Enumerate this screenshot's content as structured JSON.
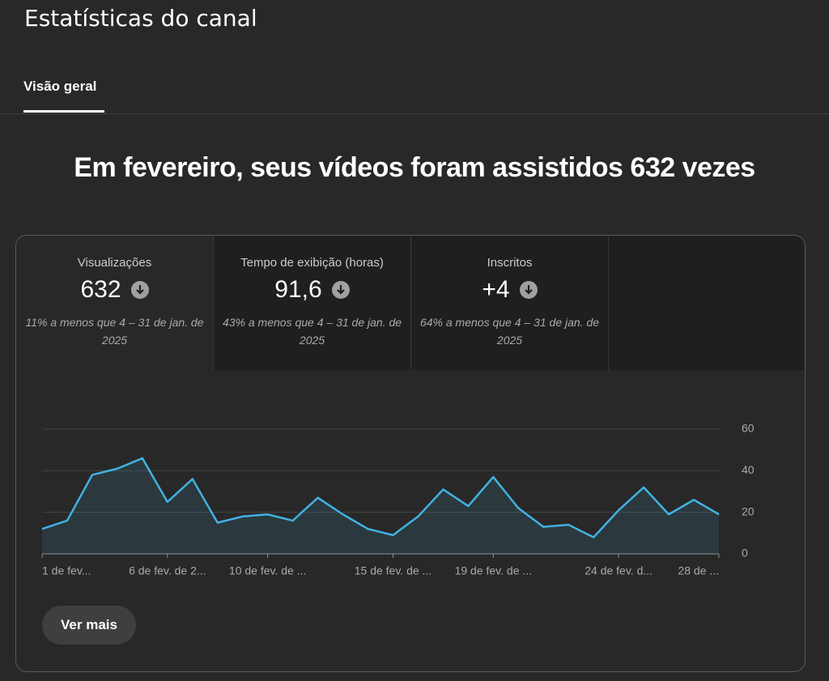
{
  "header": {
    "title": "Estatísticas do canal",
    "tab": "Visão geral"
  },
  "headline": "Em fevereiro, seus vídeos foram assistidos 632 vezes",
  "metrics": [
    {
      "label": "Visualizações",
      "value": "632",
      "note": "11% a menos que 4 – 31 de jan. de 2025"
    },
    {
      "label": "Tempo de exibição (horas)",
      "value": "91,6",
      "note": "43% a menos que 4 – 31 de jan. de 2025"
    },
    {
      "label": "Inscritos",
      "value": "+4",
      "note": "64% a menos que 4 – 31 de jan. de 2025"
    }
  ],
  "chart_data": {
    "type": "line",
    "categories": [
      "1 de fev...",
      null,
      null,
      null,
      null,
      "6 de fev. de 2...",
      null,
      null,
      null,
      "10 de fev. de ...",
      null,
      null,
      null,
      null,
      "15 de fev. de ...",
      null,
      null,
      null,
      "19 de fev. de ...",
      null,
      null,
      null,
      null,
      "24 de fev. d...",
      null,
      null,
      null,
      "28 de ..."
    ],
    "values": [
      12,
      16,
      38,
      41,
      46,
      25,
      36,
      15,
      18,
      19,
      16,
      27,
      19,
      12,
      9,
      18,
      31,
      23,
      37,
      22,
      13,
      14,
      8,
      21,
      32,
      19,
      26,
      19
    ],
    "color": "#41b2e2",
    "ylim": [
      0,
      60
    ],
    "yticks": [
      0,
      20,
      40,
      60
    ],
    "grid": true,
    "y_axis_side": "right"
  },
  "button": "Ver mais"
}
